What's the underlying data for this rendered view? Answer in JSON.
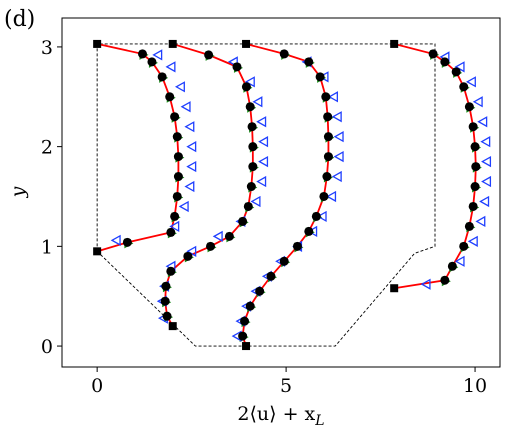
{
  "chart_data": {
    "type": "profiles",
    "panel_label": "(d)",
    "xlabel": {
      "main": "2⟨u⟩ + x",
      "sub": "L"
    },
    "ylabel": "y",
    "xlim": [
      -0.93,
      10.66
    ],
    "ylim": [
      -0.21,
      3.29
    ],
    "xticks": [
      0,
      5,
      10
    ],
    "yticks": [
      0,
      1,
      2,
      3
    ],
    "series": [
      {
        "x": [
          0,
          0,
          8.94,
          8.94,
          8.4,
          6.3,
          2.6,
          0
        ],
        "y": [
          0.95,
          3.03,
          3.03,
          1.0,
          0.93,
          0,
          0,
          0.95
        ],
        "color": "#000000",
        "dash": true
      },
      {
        "x": [
          0,
          0.8,
          1.95,
          2.05,
          2.12,
          2.15,
          2.15,
          2.12,
          2.05,
          1.92,
          1.72,
          1.45,
          1.2,
          0
        ],
        "y": [
          0.95,
          1.04,
          1.14,
          1.3,
          1.5,
          1.7,
          1.9,
          2.1,
          2.3,
          2.5,
          2.7,
          2.85,
          2.93,
          3.03
        ],
        "color": "#ff0000",
        "marker": "circle",
        "marker_color": "#000000",
        "marker2": "tri-right",
        "marker2_color": "#1a8a1a",
        "end_marker": "square"
      },
      {
        "x": [
          2.0,
          1.85,
          1.8,
          1.82,
          1.95,
          2.4,
          3.0,
          3.5,
          3.85,
          4.0,
          4.08,
          4.12,
          4.12,
          4.1,
          4.05,
          3.95,
          3.7,
          2.95,
          2.0
        ],
        "y": [
          0.2,
          0.3,
          0.45,
          0.6,
          0.75,
          0.9,
          1.0,
          1.1,
          1.25,
          1.4,
          1.6,
          1.8,
          2.0,
          2.2,
          2.4,
          2.6,
          2.8,
          2.92,
          3.03
        ],
        "color": "#ff0000",
        "marker": "circle",
        "marker_color": "#000000",
        "marker2": "tri-right",
        "marker2_color": "#1a8a1a",
        "end_marker": "square"
      },
      {
        "x": [
          3.94,
          3.85,
          3.9,
          4.05,
          4.3,
          4.6,
          4.95,
          5.3,
          5.6,
          5.8,
          6.0,
          6.08,
          6.12,
          6.12,
          6.1,
          6.05,
          5.9,
          5.6,
          4.95,
          3.94
        ],
        "y": [
          0,
          0.1,
          0.25,
          0.4,
          0.55,
          0.7,
          0.85,
          1.0,
          1.15,
          1.3,
          1.5,
          1.7,
          1.9,
          2.1,
          2.3,
          2.5,
          2.7,
          2.85,
          2.93,
          3.03
        ],
        "color": "#ff0000",
        "marker": "circle",
        "marker_color": "#000000",
        "marker2": "tri-right",
        "marker2_color": "#1a8a1a",
        "end_marker": "square"
      },
      {
        "x": [
          7.86,
          9.2,
          9.4,
          9.7,
          9.85,
          9.95,
          10.0,
          10.02,
          10.0,
          9.95,
          9.85,
          9.7,
          9.5,
          9.2,
          8.89,
          7.86
        ],
        "y": [
          0.58,
          0.66,
          0.8,
          1.0,
          1.2,
          1.4,
          1.6,
          1.8,
          2.0,
          2.2,
          2.4,
          2.6,
          2.75,
          2.85,
          2.93,
          3.03
        ],
        "color": "#ff0000",
        "marker": "circle",
        "marker_color": "#000000",
        "marker2": "tri-right",
        "marker2_color": "#1a8a1a",
        "end_marker": "square"
      },
      {
        "x": [
          0.5,
          2.05,
          2.3,
          2.45,
          2.5,
          2.5,
          2.45,
          2.35,
          2.2,
          1.95,
          1.6
        ],
        "y": [
          1.06,
          1.2,
          1.4,
          1.6,
          1.8,
          2.0,
          2.2,
          2.4,
          2.6,
          2.8,
          2.92
        ],
        "color": "#1f3fff",
        "marker": "tri-left-open"
      },
      {
        "x": [
          1.75,
          1.72,
          1.78,
          1.95,
          2.5,
          3.2,
          3.8,
          4.2,
          4.35,
          4.4,
          4.4,
          4.35,
          4.25,
          4.05,
          3.6
        ],
        "y": [
          0.28,
          0.45,
          0.6,
          0.8,
          0.95,
          1.1,
          1.25,
          1.45,
          1.65,
          1.85,
          2.05,
          2.25,
          2.45,
          2.65,
          2.85
        ],
        "color": "#1f3fff",
        "marker": "tri-left-open"
      },
      {
        "x": [
          3.7,
          3.8,
          3.95,
          4.2,
          4.5,
          4.85,
          5.3,
          5.7,
          5.95,
          6.2,
          6.35,
          6.4,
          6.4,
          6.35,
          6.25,
          6.0,
          5.55
        ],
        "y": [
          0.1,
          0.25,
          0.4,
          0.55,
          0.7,
          0.85,
          1.0,
          1.15,
          1.3,
          1.5,
          1.7,
          1.9,
          2.1,
          2.3,
          2.5,
          2.7,
          2.85
        ],
        "color": "#1f3fff",
        "marker": "tri-left-open"
      },
      {
        "x": [
          8.7,
          9.6,
          9.95,
          10.15,
          10.25,
          10.3,
          10.3,
          10.28,
          10.2,
          10.08,
          9.9,
          9.6,
          9.2
        ],
        "y": [
          0.62,
          0.85,
          1.05,
          1.25,
          1.45,
          1.65,
          1.85,
          2.05,
          2.25,
          2.45,
          2.65,
          2.8,
          2.9
        ],
        "color": "#1f3fff",
        "marker": "tri-left-open"
      }
    ]
  }
}
